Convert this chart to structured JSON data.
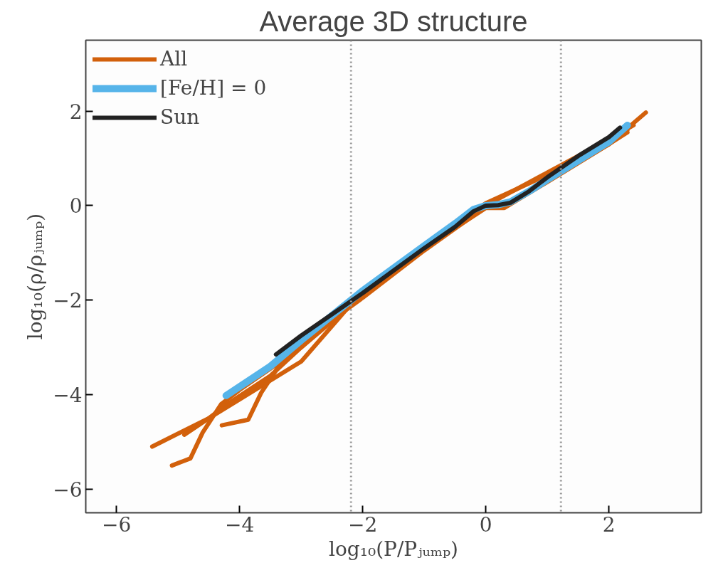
{
  "chart_data": {
    "type": "line",
    "title": "Average 3D structure",
    "xlabel": "log₁₀(P/Pⱼᵤₘₚ)",
    "ylabel": "log₁₀(ρ/ρⱼᵤₘₚ)",
    "xlim": [
      -6.5,
      3.5
    ],
    "ylim": [
      -6.5,
      3.5
    ],
    "xticks": [
      {
        "value": -6,
        "label": "−6"
      },
      {
        "value": -4,
        "label": "−4"
      },
      {
        "value": -2,
        "label": "−2"
      },
      0,
      2
    ],
    "yticks": [
      {
        "value": -6,
        "label": "−6"
      },
      {
        "value": -4,
        "label": "−4"
      },
      {
        "value": -2,
        "label": "−2"
      },
      0,
      2
    ],
    "grid": false,
    "legend": "top left",
    "line_style": "solid",
    "marker": "none",
    "ref_lines": [
      {
        "axis": "x",
        "value": -2.19,
        "color": "#999999",
        "line_style": "dotted"
      },
      {
        "axis": "x",
        "value": 1.22,
        "color": "#999999",
        "line_style": "dotted"
      }
    ],
    "series": [
      {
        "name": "All",
        "color": "#d2600b",
        "x": [
          -5.42,
          -4.5,
          -4.0,
          -3.0,
          -2.0,
          -1.0,
          -0.5,
          0.0,
          0.5,
          1.0,
          2.0,
          2.6
        ],
        "values": [
          -5.1,
          -4.5,
          -4.1,
          -3.3,
          -1.8,
          -0.9,
          -0.4,
          0.05,
          0.35,
          0.65,
          1.3,
          1.97
        ]
      },
      {
        "color": "#d2600b",
        "x": [
          -5.1,
          -4.8,
          -4.6,
          -4.3,
          -4.0,
          -3.0,
          -2.0,
          -1.0,
          0.0,
          0.3,
          1.0,
          2.0,
          2.3
        ],
        "values": [
          -5.5,
          -5.35,
          -4.8,
          -4.2,
          -3.9,
          -3.0,
          -1.9,
          -0.9,
          -0.05,
          -0.05,
          0.5,
          1.3,
          1.6
        ]
      },
      {
        "color": "#d2600b",
        "x": [
          -4.29,
          -3.86,
          -3.65,
          -3.39,
          -3.04,
          -2.0,
          -1.0,
          0.0,
          0.3,
          1.0,
          2.0,
          2.3
        ],
        "values": [
          -4.65,
          -4.53,
          -3.96,
          -3.45,
          -2.93,
          -1.95,
          -0.95,
          -0.02,
          0.0,
          0.55,
          1.3,
          1.55
        ]
      },
      {
        "color": "#d2600b",
        "x": [
          -4.9,
          -4.5,
          -4.2,
          -3.5,
          -2.5,
          -1.5,
          -0.5,
          0.0,
          1.0,
          2.0,
          2.4
        ],
        "values": [
          -4.85,
          -4.5,
          -4.2,
          -3.6,
          -2.4,
          -1.4,
          -0.35,
          0.0,
          0.7,
          1.4,
          1.7
        ]
      },
      {
        "name": "[Fe/H] = 0",
        "color": "#56b4e9",
        "x": [
          -4.22,
          -3.5,
          -3.0,
          -2.0,
          -1.0,
          -0.5,
          -0.2,
          0.0,
          0.2,
          0.4,
          0.7,
          1.0,
          1.5,
          2.0,
          2.3
        ],
        "values": [
          -4.02,
          -3.4,
          -2.85,
          -1.8,
          -0.85,
          -0.38,
          -0.08,
          0.0,
          0.02,
          0.08,
          0.3,
          0.55,
          0.95,
          1.35,
          1.7
        ]
      },
      {
        "name": "Sun",
        "color": "#222222",
        "x": [
          -3.41,
          -3.0,
          -2.0,
          -1.0,
          -0.5,
          -0.2,
          0.0,
          0.2,
          0.4,
          0.7,
          1.0,
          1.5,
          2.0,
          2.18
        ],
        "values": [
          -3.15,
          -2.75,
          -1.85,
          -0.9,
          -0.45,
          -0.12,
          0.0,
          0.01,
          0.06,
          0.3,
          0.6,
          1.05,
          1.45,
          1.65
        ]
      }
    ]
  }
}
